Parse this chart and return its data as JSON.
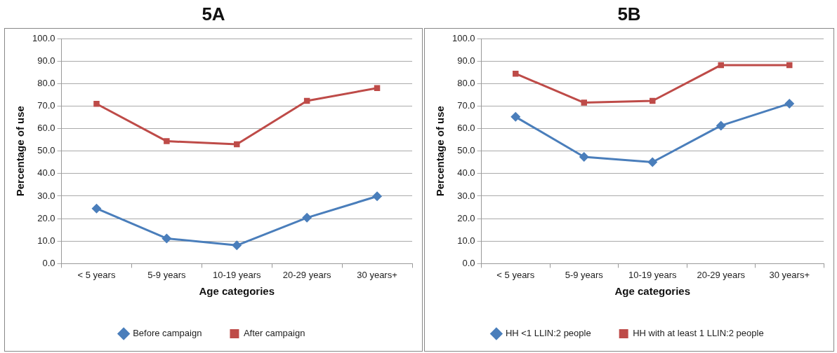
{
  "chart_data": [
    {
      "type": "line",
      "title": "5A",
      "xlabel": "Age categories",
      "ylabel": "Percentage of use",
      "categories": [
        "< 5 years",
        "5-9 years",
        "10-19 years",
        "20-29 years",
        "30 years+"
      ],
      "series": [
        {
          "name": "Before campaign",
          "color": "#4a7ebb",
          "marker": "diamond",
          "values": [
            24.5,
            11.2,
            8.1,
            20.4,
            29.9
          ]
        },
        {
          "name": "After campaign",
          "color": "#be4b48",
          "marker": "square",
          "values": [
            71.0,
            54.4,
            53.0,
            72.3,
            78.0
          ]
        }
      ],
      "ylim": [
        0,
        100
      ],
      "yticks": [
        {
          "value": 0,
          "label": "0.0"
        },
        {
          "value": 10,
          "label": "10.0"
        },
        {
          "value": 20,
          "label": "20.0"
        },
        {
          "value": 30,
          "label": "30.0"
        },
        {
          "value": 40,
          "label": "40.0"
        },
        {
          "value": 50,
          "label": "50.0"
        },
        {
          "value": 60,
          "label": "60.0"
        },
        {
          "value": 70,
          "label": "70.0"
        },
        {
          "value": 80,
          "label": "80.0"
        },
        {
          "value": 90,
          "label": "90.0"
        },
        {
          "value": 100,
          "label": "100.0"
        }
      ],
      "grid": "y",
      "legend": "bottom",
      "line_style": "solid"
    },
    {
      "type": "line",
      "title": "5B",
      "xlabel": "Age categories",
      "ylabel": "Percentage of use",
      "categories": [
        "< 5 years",
        "5-9 years",
        "10-19 years",
        "20-29 years",
        "30 years+"
      ],
      "series": [
        {
          "name": "HH <1 LLIN:2 people",
          "color": "#4a7ebb",
          "marker": "diamond",
          "values": [
            65.2,
            47.4,
            45.1,
            61.3,
            71.1
          ]
        },
        {
          "name": "HH with at least 1 LLIN:2 people",
          "color": "#be4b48",
          "marker": "square",
          "values": [
            84.4,
            71.5,
            72.3,
            88.2,
            88.2
          ]
        }
      ],
      "ylim": [
        0,
        100
      ],
      "yticks": [
        {
          "value": 0,
          "label": "0.0"
        },
        {
          "value": 10,
          "label": "10.0"
        },
        {
          "value": 20,
          "label": "20.0"
        },
        {
          "value": 30,
          "label": "30.0"
        },
        {
          "value": 40,
          "label": "40.0"
        },
        {
          "value": 50,
          "label": "50.0"
        },
        {
          "value": 60,
          "label": "60.0"
        },
        {
          "value": 70,
          "label": "70.0"
        },
        {
          "value": 80,
          "label": "80.0"
        },
        {
          "value": 90,
          "label": "90.0"
        },
        {
          "value": 100,
          "label": "100.0"
        }
      ],
      "grid": "y",
      "legend": "bottom",
      "line_style": "solid"
    }
  ]
}
